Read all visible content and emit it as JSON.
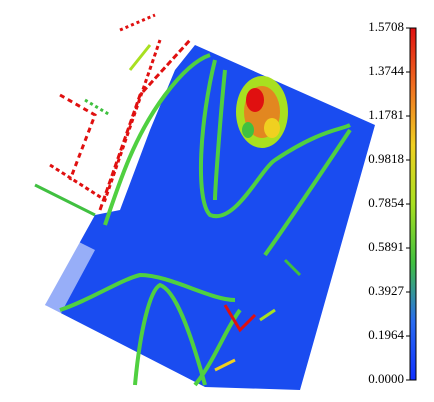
{
  "chart_data": {
    "type": "pointcloud",
    "colorbar": {
      "lim": [
        0,
        1.5708
      ],
      "ticks": [
        {
          "value": 0,
          "label": "0.0000"
        },
        0.1964,
        0.3927,
        0.5891,
        0.7854,
        0.9818,
        1.1781,
        1.3744,
        1.5708
      ],
      "colormap": [
        "#1030ff",
        "#2a6cf0",
        "#40c040",
        "#a8e020",
        "#f0d020",
        "#f07020",
        "#e01010"
      ]
    }
  }
}
